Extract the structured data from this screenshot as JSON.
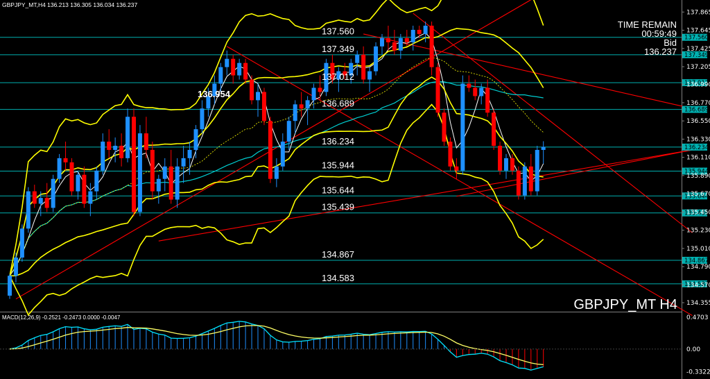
{
  "header": {
    "symbol_line": "GBPJPY_MT,H4 136.213 136.305 136.034 136.237"
  },
  "info": {
    "time_remain_label": "TIME REMAIN",
    "time_remain": "00:59:49",
    "bid_label": "Bid",
    "bid": "136.237"
  },
  "watermark": "GBPJPY_MT H4",
  "colors": {
    "bull": "#1e90ff",
    "bear": "#ff0000",
    "bands": "#ffff00",
    "ma_slow": "#00ced1",
    "ma_fast": "#ffffff",
    "hline": "#00b0b0",
    "trend": "#ff0000",
    "macd_line": "#00e5ff",
    "signal": "#ffff66"
  },
  "chart_data": {
    "type": "candlestick",
    "price_axis_ticks": [
      "137.865",
      "137.645",
      "137.425",
      "137.205",
      "136.990",
      "136.770",
      "136.550",
      "136.330",
      "136.110",
      "135.890",
      "135.670",
      "135.450",
      "135.230",
      "135.010",
      "134.790",
      "134.570",
      "134.355"
    ],
    "ylim": [
      134.28,
      137.96
    ],
    "levels": [
      {
        "value": 137.56,
        "label": "137.560",
        "tag": "137.560"
      },
      {
        "value": 137.349,
        "label": "137.349",
        "tag": "137.349"
      },
      {
        "value": 137.012,
        "label": "137.012",
        "tag": "137.012"
      },
      {
        "value": 136.689,
        "label": "136.689",
        "tag": "136.689"
      },
      {
        "value": 136.234,
        "label": "136.234",
        "tag": "136.234"
      },
      {
        "value": 135.944,
        "label": "135.944",
        "tag": "135.944"
      },
      {
        "value": 135.644,
        "label": "135.644",
        "tag": "135.644"
      },
      {
        "value": 135.439,
        "label": "135.439",
        "tag": "135.439"
      },
      {
        "value": 134.867,
        "label": "134.867",
        "tag": "134.867"
      },
      {
        "value": 134.583,
        "label": "134.583",
        "tag": "134.583"
      }
    ],
    "peak_label": "136.954",
    "candles": [
      [
        134.44,
        134.7,
        134.4,
        134.68
      ],
      [
        134.68,
        134.96,
        134.6,
        134.9
      ],
      [
        134.9,
        135.3,
        134.85,
        135.25
      ],
      [
        135.25,
        135.75,
        135.2,
        135.7
      ],
      [
        135.7,
        135.78,
        135.5,
        135.55
      ],
      [
        135.55,
        135.7,
        135.4,
        135.62
      ],
      [
        135.62,
        135.8,
        135.45,
        135.5
      ],
      [
        135.5,
        135.9,
        135.45,
        135.85
      ],
      [
        135.85,
        136.15,
        135.8,
        136.1
      ],
      [
        136.1,
        136.3,
        135.95,
        136.05
      ],
      [
        136.05,
        136.1,
        135.65,
        135.7
      ],
      [
        135.7,
        135.95,
        135.6,
        135.9
      ],
      [
        135.9,
        136.0,
        135.5,
        135.55
      ],
      [
        135.55,
        135.8,
        135.4,
        135.7
      ],
      [
        135.7,
        136.0,
        135.6,
        135.95
      ],
      [
        135.95,
        136.4,
        135.9,
        136.3
      ],
      [
        136.3,
        136.45,
        136.1,
        136.2
      ],
      [
        136.2,
        136.35,
        136.05,
        136.25
      ],
      [
        136.25,
        136.4,
        136.0,
        136.1
      ],
      [
        136.1,
        136.7,
        136.05,
        136.6
      ],
      [
        136.6,
        136.7,
        135.4,
        135.45
      ],
      [
        135.45,
        136.5,
        135.4,
        136.4
      ],
      [
        136.4,
        136.6,
        136.1,
        136.2
      ],
      [
        136.2,
        136.3,
        135.6,
        135.7
      ],
      [
        135.7,
        135.9,
        135.55,
        135.85
      ],
      [
        135.85,
        136.1,
        135.7,
        136.0
      ],
      [
        136.0,
        136.2,
        135.55,
        135.6
      ],
      [
        135.6,
        136.1,
        135.5,
        136.0
      ],
      [
        136.0,
        136.25,
        135.8,
        136.1
      ],
      [
        136.1,
        136.3,
        135.9,
        136.2
      ],
      [
        136.2,
        136.5,
        136.1,
        136.45
      ],
      [
        136.45,
        136.8,
        136.4,
        136.7
      ],
      [
        136.7,
        136.95,
        136.6,
        136.85
      ],
      [
        136.85,
        137.1,
        136.75,
        137.0
      ],
      [
        137.0,
        137.25,
        136.9,
        137.2
      ],
      [
        137.2,
        137.4,
        137.1,
        137.3
      ],
      [
        137.3,
        137.35,
        137.0,
        137.1
      ],
      [
        137.1,
        137.3,
        137.05,
        137.25
      ],
      [
        137.25,
        137.3,
        137.0,
        137.05
      ],
      [
        137.05,
        137.1,
        136.75,
        136.8
      ],
      [
        136.8,
        137.0,
        136.6,
        136.9
      ],
      [
        136.9,
        136.95,
        136.5,
        136.55
      ],
      [
        136.55,
        136.6,
        135.8,
        135.85
      ],
      [
        135.85,
        136.1,
        135.75,
        136.0
      ],
      [
        136.0,
        136.4,
        135.95,
        136.3
      ],
      [
        136.3,
        136.6,
        136.2,
        136.55
      ],
      [
        136.55,
        136.8,
        136.4,
        136.75
      ],
      [
        136.75,
        136.9,
        136.6,
        136.7
      ],
      [
        136.7,
        136.85,
        136.5,
        136.8
      ],
      [
        136.8,
        137.0,
        136.7,
        136.95
      ],
      [
        136.95,
        137.1,
        136.8,
        136.9
      ],
      [
        136.9,
        137.3,
        136.85,
        137.25
      ],
      [
        137.25,
        137.35,
        137.0,
        137.05
      ],
      [
        137.05,
        137.2,
        136.9,
        137.15
      ],
      [
        137.15,
        137.25,
        137.05,
        137.1
      ],
      [
        137.1,
        137.3,
        137.0,
        137.25
      ],
      [
        137.25,
        137.4,
        137.1,
        137.35
      ],
      [
        137.35,
        137.45,
        137.0,
        137.05
      ],
      [
        137.05,
        137.2,
        136.9,
        137.15
      ],
      [
        137.15,
        137.5,
        137.1,
        137.45
      ],
      [
        137.45,
        137.6,
        137.35,
        137.55
      ],
      [
        137.55,
        137.7,
        137.4,
        137.5
      ],
      [
        137.5,
        137.65,
        137.35,
        137.4
      ],
      [
        137.4,
        137.6,
        137.3,
        137.55
      ],
      [
        137.55,
        137.65,
        137.45,
        137.5
      ],
      [
        137.5,
        137.7,
        137.4,
        137.65
      ],
      [
        137.65,
        137.7,
        137.55,
        137.6
      ],
      [
        137.6,
        137.75,
        137.5,
        137.7
      ],
      [
        137.7,
        137.75,
        137.1,
        137.2
      ],
      [
        137.2,
        137.25,
        136.6,
        136.65
      ],
      [
        136.65,
        136.7,
        136.25,
        136.3
      ],
      [
        136.3,
        136.35,
        135.95,
        136.0
      ],
      [
        136.0,
        136.1,
        135.85,
        135.95
      ],
      [
        135.95,
        137.1,
        135.9,
        137.0
      ],
      [
        137.0,
        137.1,
        136.9,
        136.95
      ],
      [
        136.95,
        137.05,
        136.8,
        136.85
      ],
      [
        136.85,
        137.0,
        136.75,
        136.95
      ],
      [
        136.95,
        137.05,
        136.6,
        136.65
      ],
      [
        136.65,
        136.7,
        136.2,
        136.25
      ],
      [
        136.25,
        136.3,
        135.9,
        135.95
      ],
      [
        135.95,
        136.15,
        135.85,
        136.1
      ],
      [
        136.1,
        136.15,
        135.9,
        135.95
      ],
      [
        135.95,
        136.0,
        135.6,
        135.65
      ],
      [
        135.65,
        136.05,
        135.6,
        136.0
      ],
      [
        136.0,
        136.15,
        135.65,
        135.7
      ],
      [
        135.7,
        136.25,
        135.65,
        136.2
      ],
      [
        136.2,
        136.305,
        136.034,
        136.237
      ]
    ],
    "macd": {
      "label": "MACD(12,26,9) -0.2521 -0.2473 0.0000 -0.0047",
      "axis_ticks": [
        "0.4703",
        "0.00",
        "-0.3322"
      ],
      "ylim": [
        -0.38,
        0.52
      ]
    }
  }
}
